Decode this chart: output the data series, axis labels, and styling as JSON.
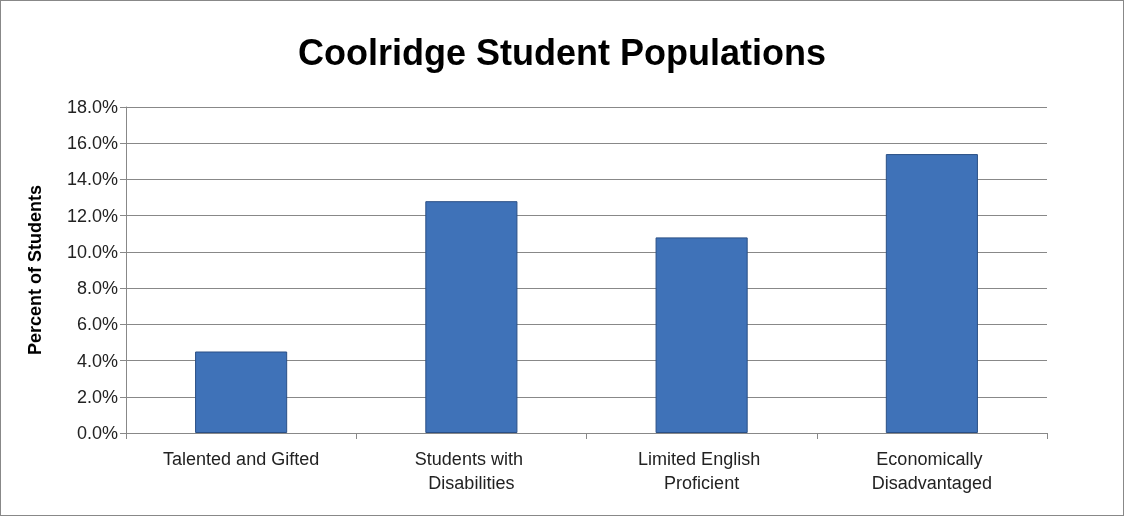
{
  "chart_data": {
    "type": "bar",
    "title": "Coolridge Student Populations",
    "ylabel": "Percent of Students",
    "categories": [
      "Talented and Gifted",
      "Students with Disabilities",
      "Limited English Proficient",
      "Economically Disadvantaged"
    ],
    "values": [
      4.5,
      12.8,
      10.8,
      15.4
    ],
    "color": "#3f72b8",
    "ylim": [
      0,
      18
    ],
    "yticks": [
      {
        "value": 0,
        "label": "0.0%"
      },
      {
        "value": 2,
        "label": "2.0%"
      },
      {
        "value": 4,
        "label": "4.0%"
      },
      {
        "value": 6,
        "label": "6.0%"
      },
      {
        "value": 8,
        "label": "8.0%"
      },
      {
        "value": 10,
        "label": "10.0%"
      },
      {
        "value": 12,
        "label": "12.0%"
      },
      {
        "value": 14,
        "label": "14.0%"
      },
      {
        "value": 16,
        "label": "16.0%"
      },
      {
        "value": 18,
        "label": "18.0%"
      }
    ],
    "grid": "y"
  }
}
